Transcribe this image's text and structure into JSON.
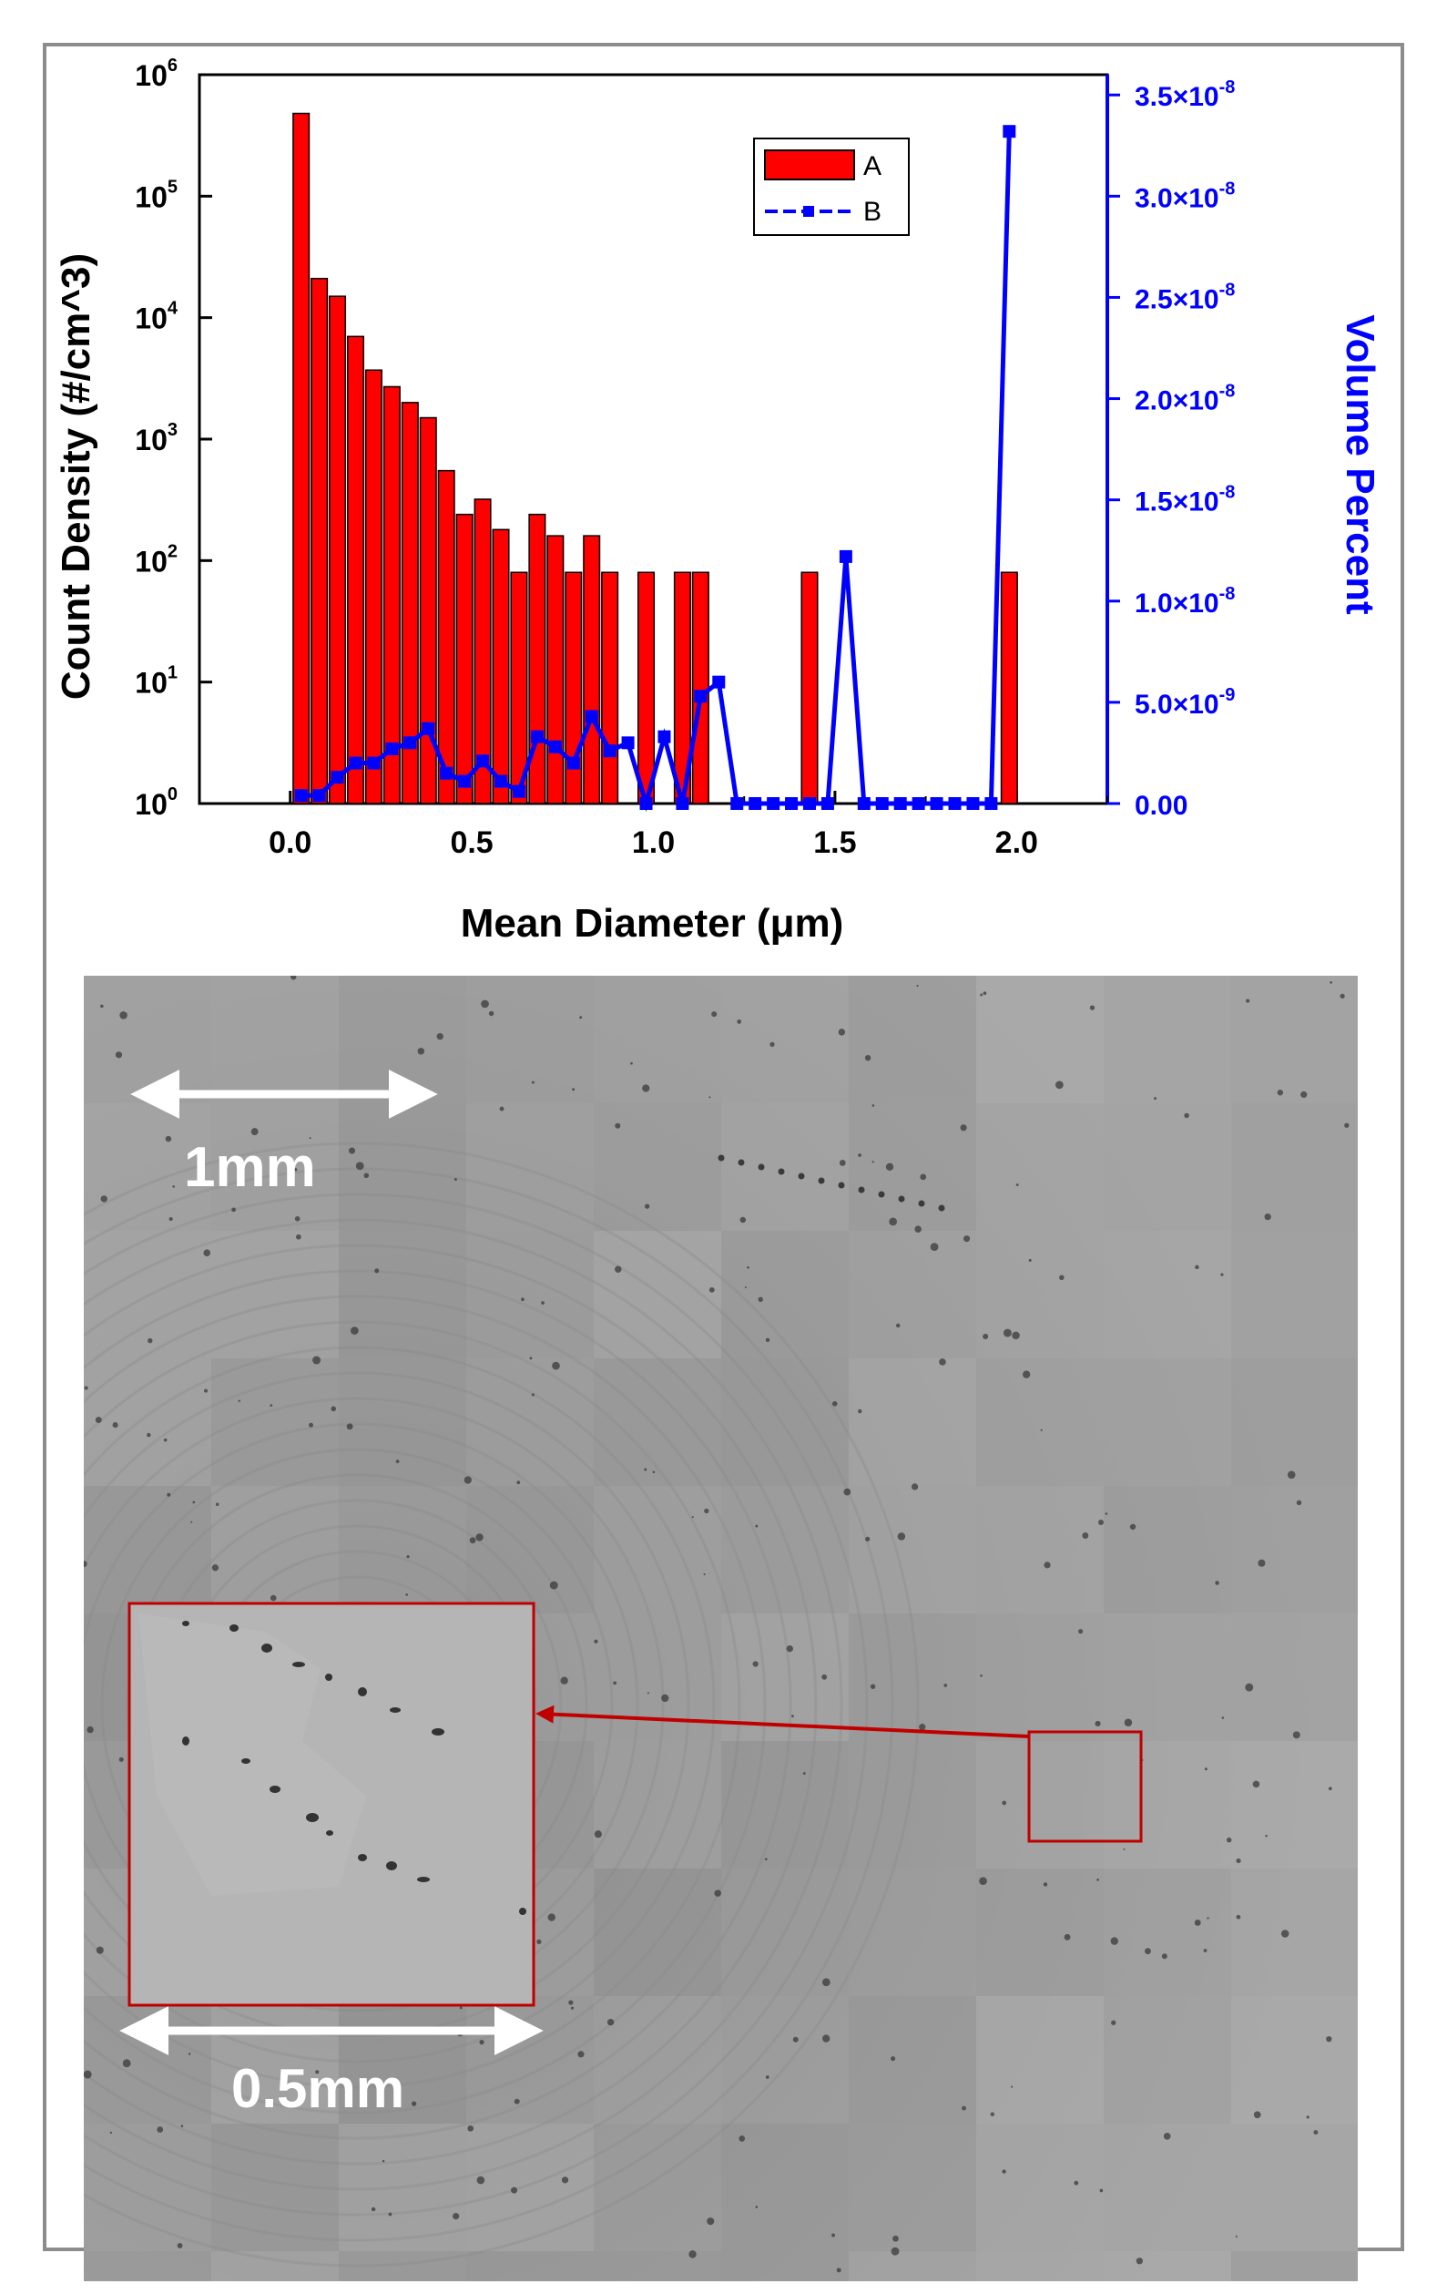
{
  "chart_data": {
    "type": "bar",
    "xlabel": "Mean Diameter (μm)",
    "ylabel": "Count Density (#/cm^3)",
    "y2label": "Volume Percent",
    "xlim": [
      -0.25,
      2.25
    ],
    "ylim_log": [
      1,
      1000000
    ],
    "y2lim": [
      0,
      3.6e-08
    ],
    "x_ticks": [
      "0.0",
      "0.5",
      "1.0",
      "1.5",
      "2.0"
    ],
    "y_ticks": [
      {
        "base": "10",
        "exp": "0"
      },
      {
        "base": "10",
        "exp": "1"
      },
      {
        "base": "10",
        "exp": "2"
      },
      {
        "base": "10",
        "exp": "3"
      },
      {
        "base": "10",
        "exp": "4"
      },
      {
        "base": "10",
        "exp": "5"
      },
      {
        "base": "10",
        "exp": "6"
      }
    ],
    "y2_ticks": [
      {
        "mant": "0.00",
        "exp": ""
      },
      {
        "mant": "5.0×10",
        "exp": "-9"
      },
      {
        "mant": "1.0×10",
        "exp": "-8"
      },
      {
        "mant": "1.5×10",
        "exp": "-8"
      },
      {
        "mant": "2.0×10",
        "exp": "-8"
      },
      {
        "mant": "2.5×10",
        "exp": "-8"
      },
      {
        "mant": "3.0×10",
        "exp": "-8"
      },
      {
        "mant": "3.5×10",
        "exp": "-8"
      }
    ],
    "legend": {
      "position": "top-right",
      "entries": [
        "A",
        "B"
      ]
    },
    "series": [
      {
        "name": "A",
        "kind": "bar",
        "color": "#ff0000",
        "x": [
          0.03,
          0.08,
          0.13,
          0.18,
          0.23,
          0.28,
          0.33,
          0.38,
          0.43,
          0.48,
          0.53,
          0.58,
          0.63,
          0.68,
          0.73,
          0.78,
          0.83,
          0.88,
          0.98,
          1.08,
          1.13,
          1.43,
          1.98
        ],
        "values": [
          480000,
          21000,
          15000,
          7000,
          3700,
          2700,
          2000,
          1500,
          550,
          240,
          320,
          180,
          80,
          240,
          160,
          80,
          160,
          80,
          80,
          80,
          80,
          80,
          80
        ]
      },
      {
        "name": "B",
        "kind": "line",
        "color": "#0000ff",
        "x": [
          0.03,
          0.08,
          0.13,
          0.18,
          0.23,
          0.28,
          0.33,
          0.38,
          0.43,
          0.48,
          0.53,
          0.58,
          0.63,
          0.68,
          0.73,
          0.78,
          0.83,
          0.88,
          0.93,
          0.98,
          1.03,
          1.08,
          1.13,
          1.18,
          1.23,
          1.28,
          1.33,
          1.38,
          1.43,
          1.48,
          1.53,
          1.58,
          1.63,
          1.68,
          1.73,
          1.78,
          1.83,
          1.88,
          1.93,
          1.98
        ],
        "values": [
          4e-10,
          4e-10,
          1.3e-09,
          2e-09,
          2e-09,
          2.7e-09,
          3e-09,
          3.7e-09,
          1.5e-09,
          1.1e-09,
          2.1e-09,
          1.1e-09,
          6e-10,
          3.3e-09,
          2.8e-09,
          2e-09,
          4.3e-09,
          2.6e-09,
          3e-09,
          0,
          3.3e-09,
          0,
          5.3e-09,
          6e-09,
          0,
          0,
          0,
          0,
          0,
          0,
          1.22e-08,
          0,
          0,
          0,
          0,
          0,
          0,
          0,
          0,
          3.32e-08
        ]
      }
    ]
  },
  "figure": {
    "scale_bar_large": "1mm",
    "scale_bar_small": "0.5mm"
  }
}
